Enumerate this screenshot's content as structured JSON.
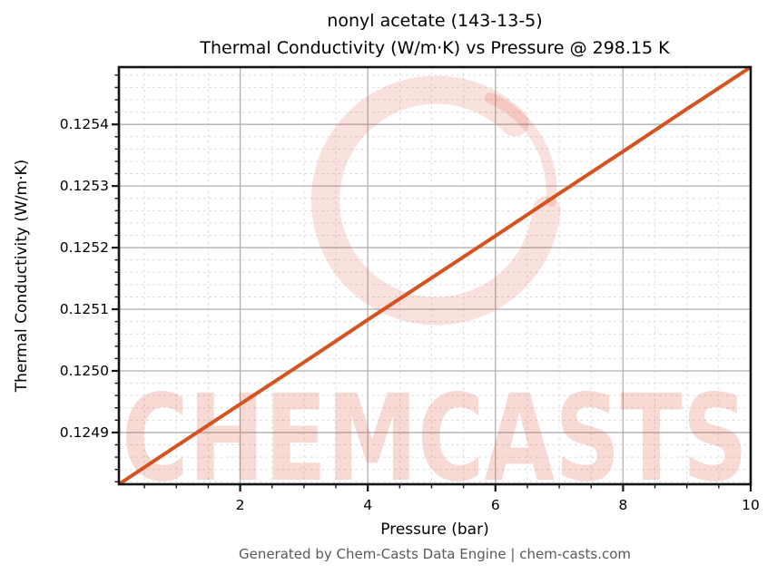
{
  "figure": {
    "watermark_text": "CHEMCASTS",
    "footer": "Generated by Chem-Casts Data Engine | chem-casts.com"
  },
  "colors": {
    "line": "#d4531e",
    "major_grid": "#b0b0b0",
    "minor_grid": "#d8d8d8",
    "spine": "#141414",
    "tick": "#141414",
    "footer_text": "#595959",
    "watermark_stroke": "rgba(220,70,45,0.16)",
    "watermark_fill": "rgba(220,70,45,0.20)"
  },
  "chart_data": {
    "type": "line",
    "title": "nonyl acetate (143-13-5)",
    "subtitle": "Thermal Conductivity (W/m·K) vs Pressure @ 298.15 K",
    "xlabel": "Pressure (bar)",
    "ylabel": "Thermal Conductivity (W/m·K)",
    "xlim": [
      0.1,
      10
    ],
    "ylim": [
      0.124816,
      0.125493
    ],
    "x_ticks": [
      {
        "value": 2,
        "label": "2"
      },
      {
        "value": 4,
        "label": "4"
      },
      {
        "value": 6,
        "label": "6"
      },
      {
        "value": 8,
        "label": "8"
      },
      {
        "value": 10,
        "label": "10"
      }
    ],
    "y_ticks": [
      {
        "value": 0.1249,
        "label": "0.1249"
      },
      {
        "value": 0.125,
        "label": "0.1250"
      },
      {
        "value": 0.1251,
        "label": "0.1251"
      },
      {
        "value": 0.1252,
        "label": "0.1252"
      },
      {
        "value": 0.1253,
        "label": "0.1253"
      },
      {
        "value": 0.1254,
        "label": "0.1254"
      }
    ],
    "x_minor_step": 0.5,
    "y_minor_step": 2e-05,
    "grid": {
      "major": true,
      "minor": true
    },
    "legend": "none",
    "series": [
      {
        "name": "thermal-conductivity-vs-pressure",
        "x": [
          0.1,
          1,
          2,
          3,
          4,
          5,
          6,
          7,
          8,
          9,
          10
        ],
        "y": [
          0.124816,
          0.124878,
          0.124946,
          0.125014,
          0.125083,
          0.125151,
          0.125219,
          0.125288,
          0.125356,
          0.125425,
          0.125493
        ]
      }
    ]
  }
}
